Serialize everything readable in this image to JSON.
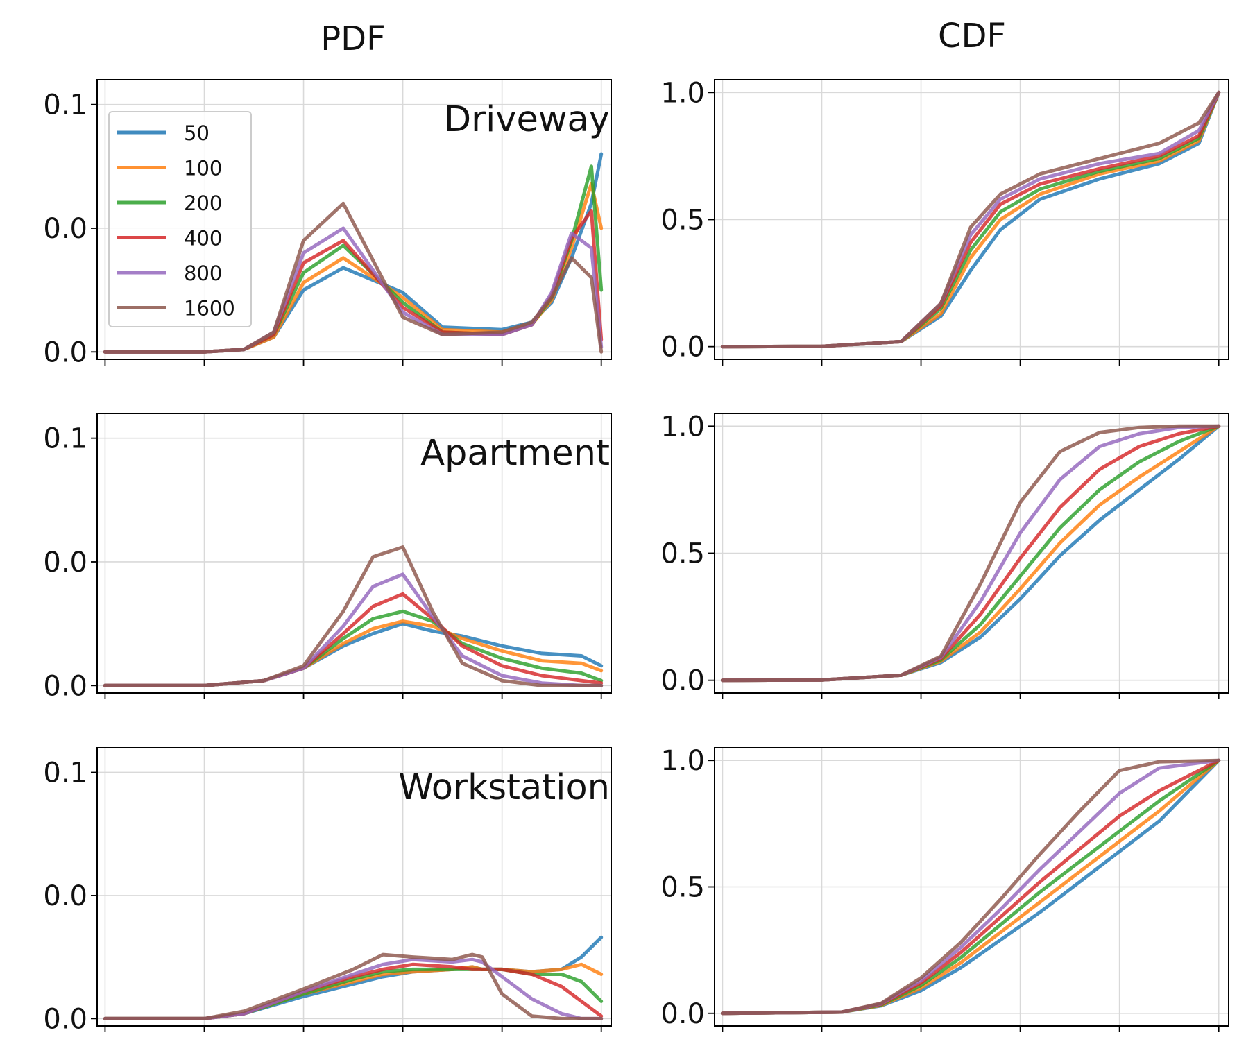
{
  "columns": [
    "PDF",
    "CDF"
  ],
  "rows": [
    "Driveway",
    "Apartment",
    "Workstation"
  ],
  "colors": {
    "50": "#1f77b4",
    "100": "#ff7f0e",
    "200": "#2ca02c",
    "400": "#d62728",
    "800": "#9467bd",
    "1600": "#8c564b"
  },
  "legend": {
    "placement": "upper-left of Driveway PDF panel",
    "entries": [
      "50",
      "100",
      "200",
      "400",
      "800",
      "1600"
    ]
  },
  "grid": true,
  "chart_data": [
    {
      "panel": "Driveway PDF",
      "type": "line",
      "title": "Driveway",
      "x": [
        0,
        50,
        70,
        85,
        100,
        120,
        150,
        170,
        200,
        215,
        225,
        235,
        245,
        250
      ],
      "ylim": [
        -0.003,
        0.11
      ],
      "yticks": [
        0.0,
        0.05,
        0.1
      ],
      "yticklabels": [
        "0.0",
        "0.0",
        "0.1"
      ],
      "series": [
        {
          "name": "50",
          "values": [
            0,
            0,
            0.001,
            0.006,
            0.025,
            0.034,
            0.024,
            0.01,
            0.009,
            0.012,
            0.02,
            0.038,
            0.06,
            0.08
          ]
        },
        {
          "name": "100",
          "values": [
            0,
            0,
            0.001,
            0.006,
            0.028,
            0.038,
            0.022,
            0.009,
            0.008,
            0.011,
            0.021,
            0.042,
            0.068,
            0.05
          ]
        },
        {
          "name": "200",
          "values": [
            0,
            0,
            0.001,
            0.007,
            0.032,
            0.043,
            0.02,
            0.008,
            0.007,
            0.011,
            0.022,
            0.045,
            0.075,
            0.025
          ]
        },
        {
          "name": "400",
          "values": [
            0,
            0,
            0.001,
            0.007,
            0.036,
            0.045,
            0.018,
            0.008,
            0.007,
            0.011,
            0.023,
            0.046,
            0.057,
            0.005
          ]
        },
        {
          "name": "800",
          "values": [
            0,
            0,
            0.001,
            0.008,
            0.04,
            0.05,
            0.016,
            0.007,
            0.007,
            0.011,
            0.024,
            0.048,
            0.042,
            0.002
          ]
        },
        {
          "name": "1600",
          "values": [
            0,
            0,
            0.001,
            0.008,
            0.045,
            0.06,
            0.014,
            0.007,
            0.008,
            0.012,
            0.022,
            0.038,
            0.03,
            0.0
          ]
        }
      ]
    },
    {
      "panel": "Driveway CDF",
      "type": "line",
      "x": [
        0,
        50,
        90,
        110,
        125,
        140,
        160,
        190,
        220,
        240,
        250
      ],
      "ylim": [
        -0.05,
        1.05
      ],
      "yticks": [
        0.0,
        0.5,
        1.0
      ],
      "yticklabels": [
        "0.0",
        "0.5",
        "1.0"
      ],
      "series": [
        {
          "name": "50",
          "values": [
            0,
            0.001,
            0.02,
            0.12,
            0.3,
            0.46,
            0.58,
            0.66,
            0.72,
            0.8,
            1.0
          ]
        },
        {
          "name": "100",
          "values": [
            0,
            0.001,
            0.02,
            0.13,
            0.35,
            0.5,
            0.6,
            0.68,
            0.73,
            0.81,
            1.0
          ]
        },
        {
          "name": "200",
          "values": [
            0,
            0.001,
            0.02,
            0.15,
            0.38,
            0.53,
            0.62,
            0.69,
            0.74,
            0.82,
            1.0
          ]
        },
        {
          "name": "400",
          "values": [
            0,
            0.001,
            0.02,
            0.16,
            0.41,
            0.56,
            0.64,
            0.7,
            0.75,
            0.83,
            1.0
          ]
        },
        {
          "name": "800",
          "values": [
            0,
            0.001,
            0.02,
            0.17,
            0.44,
            0.58,
            0.66,
            0.72,
            0.76,
            0.85,
            1.0
          ]
        },
        {
          "name": "1600",
          "values": [
            0,
            0.001,
            0.02,
            0.17,
            0.47,
            0.6,
            0.68,
            0.74,
            0.8,
            0.88,
            1.0
          ]
        }
      ]
    },
    {
      "panel": "Apartment PDF",
      "type": "line",
      "title": "Apartment",
      "x": [
        0,
        50,
        80,
        100,
        120,
        135,
        150,
        165,
        180,
        200,
        220,
        240,
        250
      ],
      "ylim": [
        -0.003,
        0.11
      ],
      "yticks": [
        0.0,
        0.05,
        0.1
      ],
      "yticklabels": [
        "0.0",
        "0.0",
        "0.1"
      ],
      "series": [
        {
          "name": "50",
          "values": [
            0,
            0,
            0.002,
            0.007,
            0.016,
            0.021,
            0.025,
            0.022,
            0.02,
            0.016,
            0.013,
            0.012,
            0.008
          ]
        },
        {
          "name": "100",
          "values": [
            0,
            0,
            0.002,
            0.007,
            0.017,
            0.023,
            0.026,
            0.024,
            0.019,
            0.014,
            0.01,
            0.009,
            0.006
          ]
        },
        {
          "name": "200",
          "values": [
            0,
            0,
            0.002,
            0.007,
            0.019,
            0.027,
            0.03,
            0.026,
            0.017,
            0.011,
            0.007,
            0.005,
            0.002
          ]
        },
        {
          "name": "400",
          "values": [
            0,
            0,
            0.002,
            0.007,
            0.021,
            0.032,
            0.037,
            0.027,
            0.016,
            0.008,
            0.004,
            0.002,
            0.001
          ]
        },
        {
          "name": "800",
          "values": [
            0,
            0,
            0.002,
            0.007,
            0.024,
            0.04,
            0.045,
            0.028,
            0.012,
            0.004,
            0.001,
            0.0,
            0.0
          ]
        },
        {
          "name": "1600",
          "values": [
            0,
            0,
            0.002,
            0.008,
            0.03,
            0.052,
            0.056,
            0.03,
            0.009,
            0.002,
            0.0,
            0.0,
            0.0
          ]
        }
      ]
    },
    {
      "panel": "Apartment CDF",
      "type": "line",
      "x": [
        0,
        50,
        90,
        110,
        130,
        150,
        170,
        190,
        210,
        230,
        250
      ],
      "ylim": [
        -0.05,
        1.05
      ],
      "yticks": [
        0.0,
        0.5,
        1.0
      ],
      "yticklabels": [
        "0.0",
        "0.5",
        "1.0"
      ],
      "series": [
        {
          "name": "50",
          "values": [
            0,
            0.001,
            0.02,
            0.07,
            0.17,
            0.32,
            0.49,
            0.63,
            0.75,
            0.87,
            1.0
          ]
        },
        {
          "name": "100",
          "values": [
            0,
            0.001,
            0.02,
            0.075,
            0.19,
            0.36,
            0.54,
            0.69,
            0.8,
            0.9,
            1.0
          ]
        },
        {
          "name": "200",
          "values": [
            0,
            0.001,
            0.02,
            0.08,
            0.22,
            0.41,
            0.6,
            0.75,
            0.86,
            0.94,
            1.0
          ]
        },
        {
          "name": "400",
          "values": [
            0,
            0.001,
            0.02,
            0.085,
            0.26,
            0.48,
            0.68,
            0.83,
            0.92,
            0.97,
            1.0
          ]
        },
        {
          "name": "800",
          "values": [
            0,
            0.001,
            0.02,
            0.09,
            0.31,
            0.58,
            0.79,
            0.92,
            0.97,
            0.995,
            1.0
          ]
        },
        {
          "name": "1600",
          "values": [
            0,
            0.001,
            0.02,
            0.095,
            0.38,
            0.7,
            0.9,
            0.975,
            0.995,
            1.0,
            1.0
          ]
        }
      ]
    },
    {
      "panel": "Workstation PDF",
      "type": "line",
      "title": "Workstation",
      "x": [
        0,
        50,
        70,
        100,
        125,
        140,
        155,
        175,
        185,
        190,
        200,
        215,
        230,
        240,
        250
      ],
      "ylim": [
        -0.003,
        0.11
      ],
      "yticks": [
        0.0,
        0.05,
        0.1
      ],
      "yticklabels": [
        "0.0",
        "0.0",
        "0.1"
      ],
      "series": [
        {
          "name": "50",
          "values": [
            0,
            0,
            0.002,
            0.009,
            0.014,
            0.017,
            0.019,
            0.02,
            0.021,
            0.02,
            0.02,
            0.019,
            0.02,
            0.025,
            0.033
          ]
        },
        {
          "name": "100",
          "values": [
            0,
            0,
            0.002,
            0.01,
            0.015,
            0.018,
            0.019,
            0.02,
            0.021,
            0.02,
            0.02,
            0.019,
            0.02,
            0.022,
            0.018
          ]
        },
        {
          "name": "200",
          "values": [
            0,
            0,
            0.002,
            0.01,
            0.016,
            0.019,
            0.02,
            0.02,
            0.02,
            0.02,
            0.02,
            0.018,
            0.018,
            0.015,
            0.007
          ]
        },
        {
          "name": "400",
          "values": [
            0,
            0,
            0.002,
            0.011,
            0.017,
            0.02,
            0.022,
            0.021,
            0.02,
            0.02,
            0.02,
            0.018,
            0.013,
            0.007,
            0.001
          ]
        },
        {
          "name": "800",
          "values": [
            0,
            0,
            0.002,
            0.011,
            0.018,
            0.022,
            0.024,
            0.023,
            0.024,
            0.023,
            0.017,
            0.008,
            0.002,
            0.0,
            0.0
          ]
        },
        {
          "name": "1600",
          "values": [
            0,
            0,
            0.003,
            0.012,
            0.02,
            0.026,
            0.025,
            0.024,
            0.026,
            0.025,
            0.01,
            0.001,
            0.0,
            0.0,
            0.0
          ]
        }
      ]
    },
    {
      "panel": "Workstation CDF",
      "type": "line",
      "x": [
        0,
        60,
        80,
        100,
        120,
        140,
        160,
        180,
        200,
        220,
        250
      ],
      "ylim": [
        -0.05,
        1.05
      ],
      "yticks": [
        0.0,
        0.5,
        1.0
      ],
      "yticklabels": [
        "0.0",
        "0.5",
        "1.0"
      ],
      "series": [
        {
          "name": "50",
          "values": [
            0,
            0.005,
            0.03,
            0.09,
            0.18,
            0.29,
            0.4,
            0.52,
            0.64,
            0.76,
            1.0
          ]
        },
        {
          "name": "100",
          "values": [
            0,
            0.005,
            0.032,
            0.1,
            0.2,
            0.32,
            0.44,
            0.56,
            0.68,
            0.8,
            1.0
          ]
        },
        {
          "name": "200",
          "values": [
            0,
            0.005,
            0.034,
            0.11,
            0.22,
            0.35,
            0.48,
            0.6,
            0.72,
            0.84,
            1.0
          ]
        },
        {
          "name": "400",
          "values": [
            0,
            0.005,
            0.036,
            0.12,
            0.24,
            0.38,
            0.52,
            0.65,
            0.78,
            0.88,
            1.0
          ]
        },
        {
          "name": "800",
          "values": [
            0,
            0.005,
            0.038,
            0.13,
            0.26,
            0.41,
            0.57,
            0.72,
            0.87,
            0.97,
            1.0
          ]
        },
        {
          "name": "1600",
          "values": [
            0,
            0.005,
            0.04,
            0.14,
            0.28,
            0.45,
            0.63,
            0.8,
            0.96,
            0.995,
            1.0
          ]
        }
      ]
    }
  ]
}
